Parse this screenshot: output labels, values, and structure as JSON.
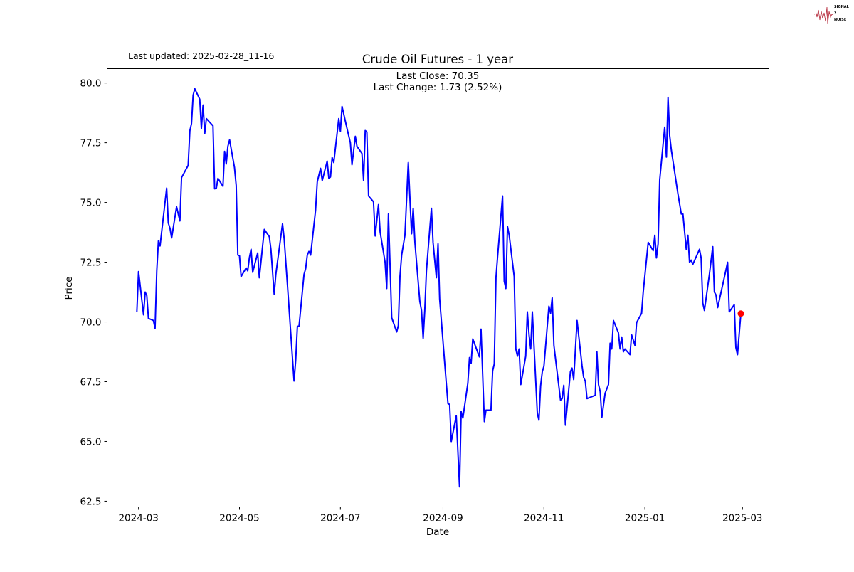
{
  "logo": {
    "text": [
      "SIGNAL",
      "2",
      "NOISE"
    ],
    "color": "#b22234"
  },
  "header": {
    "last_updated": "Last updated: 2025-02-28_11-16"
  },
  "chart_data": {
    "type": "line",
    "title": "Crude Oil Futures - 1 year",
    "annotations": [
      "Last Close: 70.35",
      "Last Change: 1.73 (2.52%)"
    ],
    "xlabel": "Date",
    "ylabel": "Price",
    "x_ticks": [
      "2024-03",
      "2024-05",
      "2024-07",
      "2024-09",
      "2024-11",
      "2025-01",
      "2025-03"
    ],
    "y_ticks": [
      "62.5",
      "65.0",
      "67.5",
      "70.0",
      "72.5",
      "75.0",
      "77.5",
      "80.0"
    ],
    "xlim": [
      "2024-02-11",
      "2025-03-17"
    ],
    "ylim": [
      62.26,
      80.6
    ],
    "grid": false,
    "line_color": "#0000ff",
    "last_point": {
      "date": "2025-02-28",
      "value": 70.35,
      "color": "#ff0000"
    },
    "series": [
      {
        "points": [
          [
            "2024-02-29",
            70.42
          ],
          [
            "2024-03-01",
            72.11
          ],
          [
            "2024-03-04",
            70.3
          ],
          [
            "2024-03-05",
            71.25
          ],
          [
            "2024-03-06",
            71.1
          ],
          [
            "2024-03-07",
            70.15
          ],
          [
            "2024-03-10",
            70.06
          ],
          [
            "2024-03-11",
            69.73
          ],
          [
            "2024-03-12",
            72.14
          ],
          [
            "2024-03-13",
            73.39
          ],
          [
            "2024-03-14",
            73.18
          ],
          [
            "2024-03-18",
            75.6
          ],
          [
            "2024-03-19",
            74.14
          ],
          [
            "2024-03-20",
            73.93
          ],
          [
            "2024-03-21",
            73.51
          ],
          [
            "2024-03-24",
            74.82
          ],
          [
            "2024-03-26",
            74.23
          ],
          [
            "2024-03-27",
            76.04
          ],
          [
            "2024-03-31",
            76.55
          ],
          [
            "2024-04-01",
            78.0
          ],
          [
            "2024-04-02",
            78.3
          ],
          [
            "2024-04-03",
            79.49
          ],
          [
            "2024-04-04",
            79.76
          ],
          [
            "2024-04-07",
            79.32
          ],
          [
            "2024-04-08",
            78.1
          ],
          [
            "2024-04-09",
            79.08
          ],
          [
            "2024-04-10",
            77.89
          ],
          [
            "2024-04-11",
            78.51
          ],
          [
            "2024-04-15",
            78.21
          ],
          [
            "2024-04-16",
            75.57
          ],
          [
            "2024-04-17",
            75.6
          ],
          [
            "2024-04-18",
            76.01
          ],
          [
            "2024-04-21",
            75.68
          ],
          [
            "2024-04-22",
            77.14
          ],
          [
            "2024-04-23",
            76.61
          ],
          [
            "2024-04-24",
            77.35
          ],
          [
            "2024-04-25",
            77.62
          ],
          [
            "2024-04-28",
            76.46
          ],
          [
            "2024-04-29",
            75.71
          ],
          [
            "2024-04-30",
            72.8
          ],
          [
            "2024-05-01",
            72.77
          ],
          [
            "2024-05-02",
            71.9
          ],
          [
            "2024-05-05",
            72.26
          ],
          [
            "2024-05-06",
            72.14
          ],
          [
            "2024-05-07",
            72.68
          ],
          [
            "2024-05-08",
            73.04
          ],
          [
            "2024-05-09",
            72.08
          ],
          [
            "2024-05-12",
            72.89
          ],
          [
            "2024-05-13",
            71.85
          ],
          [
            "2024-05-16",
            73.87
          ],
          [
            "2024-05-19",
            73.57
          ],
          [
            "2024-05-20",
            73.04
          ],
          [
            "2024-05-22",
            71.16
          ],
          [
            "2024-05-23",
            71.99
          ],
          [
            "2024-05-27",
            74.11
          ],
          [
            "2024-05-28",
            73.48
          ],
          [
            "2024-05-30",
            71.55
          ],
          [
            "2024-06-03",
            67.53
          ],
          [
            "2024-06-04",
            68.39
          ],
          [
            "2024-06-05",
            69.82
          ],
          [
            "2024-06-06",
            69.82
          ],
          [
            "2024-06-09",
            71.99
          ],
          [
            "2024-06-10",
            72.23
          ],
          [
            "2024-06-11",
            72.8
          ],
          [
            "2024-06-12",
            72.95
          ],
          [
            "2024-06-13",
            72.8
          ],
          [
            "2024-06-16",
            74.67
          ],
          [
            "2024-06-17",
            75.86
          ],
          [
            "2024-06-19",
            76.43
          ],
          [
            "2024-06-20",
            75.92
          ],
          [
            "2024-06-23",
            76.73
          ],
          [
            "2024-06-24",
            76.01
          ],
          [
            "2024-06-25",
            76.07
          ],
          [
            "2024-06-26",
            76.88
          ],
          [
            "2024-06-27",
            76.67
          ],
          [
            "2024-06-30",
            78.51
          ],
          [
            "2024-07-01",
            77.98
          ],
          [
            "2024-07-02",
            79.02
          ],
          [
            "2024-07-05",
            78.1
          ],
          [
            "2024-07-07",
            77.5
          ],
          [
            "2024-07-08",
            76.58
          ],
          [
            "2024-07-10",
            77.77
          ],
          [
            "2024-07-11",
            77.35
          ],
          [
            "2024-07-14",
            77.05
          ],
          [
            "2024-07-15",
            75.92
          ],
          [
            "2024-07-16",
            78.01
          ],
          [
            "2024-07-17",
            77.95
          ],
          [
            "2024-07-18",
            75.27
          ],
          [
            "2024-07-21",
            75.03
          ],
          [
            "2024-07-22",
            73.6
          ],
          [
            "2024-07-24",
            74.91
          ],
          [
            "2024-07-25",
            73.78
          ],
          [
            "2024-07-28",
            72.5
          ],
          [
            "2024-07-29",
            71.4
          ],
          [
            "2024-07-30",
            74.52
          ],
          [
            "2024-08-01",
            70.18
          ],
          [
            "2024-08-04",
            69.58
          ],
          [
            "2024-08-05",
            69.85
          ],
          [
            "2024-08-06",
            71.9
          ],
          [
            "2024-08-07",
            72.8
          ],
          [
            "2024-08-09",
            73.63
          ],
          [
            "2024-08-11",
            76.67
          ],
          [
            "2024-08-13",
            73.69
          ],
          [
            "2024-08-14",
            74.76
          ],
          [
            "2024-08-15",
            73.33
          ],
          [
            "2024-08-18",
            70.86
          ],
          [
            "2024-08-19",
            70.48
          ],
          [
            "2024-08-20",
            69.32
          ],
          [
            "2024-08-21",
            70.51
          ],
          [
            "2024-08-22",
            72.14
          ],
          [
            "2024-08-25",
            74.76
          ],
          [
            "2024-08-26",
            73.33
          ],
          [
            "2024-08-28",
            71.85
          ],
          [
            "2024-08-29",
            73.27
          ],
          [
            "2024-08-30",
            70.95
          ],
          [
            "2024-09-03",
            67.44
          ],
          [
            "2024-09-04",
            66.58
          ],
          [
            "2024-09-05",
            66.55
          ],
          [
            "2024-09-06",
            65.0
          ],
          [
            "2024-09-09",
            66.07
          ],
          [
            "2024-09-11",
            63.1
          ],
          [
            "2024-09-12",
            66.25
          ],
          [
            "2024-09-13",
            65.98
          ],
          [
            "2024-09-16",
            67.44
          ],
          [
            "2024-09-17",
            68.51
          ],
          [
            "2024-09-18",
            68.27
          ],
          [
            "2024-09-19",
            69.29
          ],
          [
            "2024-09-23",
            68.54
          ],
          [
            "2024-09-24",
            69.7
          ],
          [
            "2024-09-26",
            65.83
          ],
          [
            "2024-09-27",
            66.31
          ],
          [
            "2024-09-30",
            66.31
          ],
          [
            "2024-10-01",
            67.95
          ],
          [
            "2024-10-02",
            68.24
          ],
          [
            "2024-10-03",
            71.85
          ],
          [
            "2024-10-04",
            72.74
          ],
          [
            "2024-10-07",
            75.27
          ],
          [
            "2024-10-08",
            71.7
          ],
          [
            "2024-10-09",
            71.4
          ],
          [
            "2024-10-10",
            73.99
          ],
          [
            "2024-10-11",
            73.63
          ],
          [
            "2024-10-14",
            71.9
          ],
          [
            "2024-10-15",
            68.87
          ],
          [
            "2024-10-16",
            68.57
          ],
          [
            "2024-10-17",
            68.87
          ],
          [
            "2024-10-18",
            67.38
          ],
          [
            "2024-10-21",
            68.57
          ],
          [
            "2024-10-22",
            70.42
          ],
          [
            "2024-10-23",
            69.46
          ],
          [
            "2024-10-24",
            68.87
          ],
          [
            "2024-10-25",
            70.42
          ],
          [
            "2024-10-28",
            66.19
          ],
          [
            "2024-10-29",
            65.89
          ],
          [
            "2024-10-30",
            67.32
          ],
          [
            "2024-10-31",
            67.92
          ],
          [
            "2024-11-01",
            68.15
          ],
          [
            "2024-11-04",
            70.66
          ],
          [
            "2024-11-05",
            70.36
          ],
          [
            "2024-11-06",
            71.01
          ],
          [
            "2024-11-07",
            69.02
          ],
          [
            "2024-11-11",
            66.73
          ],
          [
            "2024-11-12",
            66.79
          ],
          [
            "2024-11-13",
            67.35
          ],
          [
            "2024-11-14",
            65.68
          ],
          [
            "2024-11-17",
            67.92
          ],
          [
            "2024-11-18",
            68.07
          ],
          [
            "2024-11-19",
            67.59
          ],
          [
            "2024-11-21",
            70.06
          ],
          [
            "2024-11-24",
            68.18
          ],
          [
            "2024-11-25",
            67.68
          ],
          [
            "2024-11-26",
            67.53
          ],
          [
            "2024-11-27",
            66.79
          ],
          [
            "2024-12-02",
            66.93
          ],
          [
            "2024-12-03",
            68.75
          ],
          [
            "2024-12-04",
            67.38
          ],
          [
            "2024-12-05",
            67.08
          ],
          [
            "2024-12-06",
            66.01
          ],
          [
            "2024-12-08",
            67.02
          ],
          [
            "2024-12-10",
            67.38
          ],
          [
            "2024-12-11",
            69.11
          ],
          [
            "2024-12-12",
            68.87
          ],
          [
            "2024-12-13",
            70.06
          ],
          [
            "2024-12-16",
            69.55
          ],
          [
            "2024-12-17",
            68.87
          ],
          [
            "2024-12-18",
            69.37
          ],
          [
            "2024-12-19",
            68.75
          ],
          [
            "2024-12-20",
            68.87
          ],
          [
            "2024-12-23",
            68.63
          ],
          [
            "2024-12-24",
            69.46
          ],
          [
            "2024-12-26",
            69.02
          ],
          [
            "2024-12-27",
            69.97
          ],
          [
            "2024-12-30",
            70.36
          ],
          [
            "2024-12-31",
            71.25
          ],
          [
            "2025-01-03",
            73.33
          ],
          [
            "2025-01-06",
            72.98
          ],
          [
            "2025-01-07",
            73.63
          ],
          [
            "2025-01-08",
            72.68
          ],
          [
            "2025-01-09",
            73.27
          ],
          [
            "2025-01-10",
            75.95
          ],
          [
            "2025-01-13",
            78.15
          ],
          [
            "2025-01-14",
            76.9
          ],
          [
            "2025-01-15",
            79.4
          ],
          [
            "2025-01-16",
            77.8
          ],
          [
            "2025-01-17",
            77.2
          ],
          [
            "2025-01-21",
            75.36
          ],
          [
            "2025-01-23",
            74.52
          ],
          [
            "2025-01-24",
            74.52
          ],
          [
            "2025-01-26",
            73.04
          ],
          [
            "2025-01-27",
            73.63
          ],
          [
            "2025-01-28",
            72.5
          ],
          [
            "2025-01-29",
            72.59
          ],
          [
            "2025-01-30",
            72.41
          ],
          [
            "2025-02-03",
            73.04
          ],
          [
            "2025-02-04",
            72.68
          ],
          [
            "2025-02-05",
            70.8
          ],
          [
            "2025-02-06",
            70.48
          ],
          [
            "2025-02-09",
            71.99
          ],
          [
            "2025-02-11",
            73.15
          ],
          [
            "2025-02-12",
            71.25
          ],
          [
            "2025-02-13",
            71.13
          ],
          [
            "2025-02-14",
            70.6
          ],
          [
            "2025-02-18",
            71.85
          ],
          [
            "2025-02-20",
            72.5
          ],
          [
            "2025-02-21",
            70.42
          ],
          [
            "2025-02-24",
            70.72
          ],
          [
            "2025-02-25",
            68.93
          ],
          [
            "2025-02-26",
            68.63
          ],
          [
            "2025-02-28",
            70.35
          ]
        ]
      }
    ]
  }
}
